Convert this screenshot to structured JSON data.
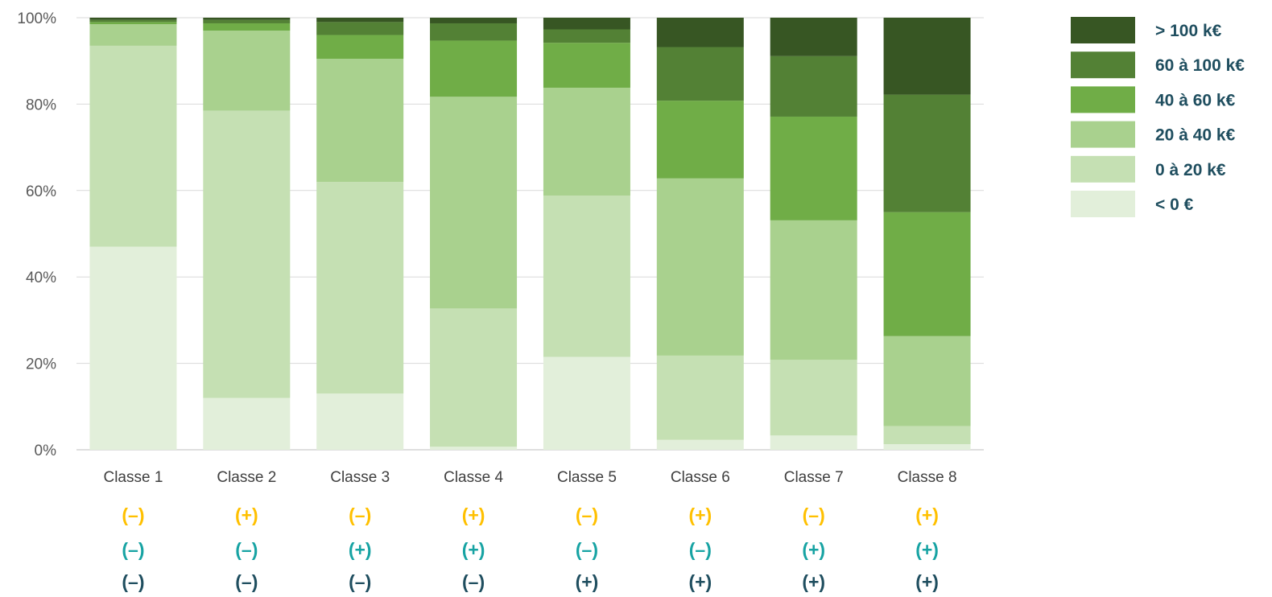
{
  "chart_data": {
    "type": "bar",
    "stacked": true,
    "percent": true,
    "categories": [
      "Classe 1",
      "Classe 2",
      "Classe 3",
      "Classe 4",
      "Classe 5",
      "Classe 6",
      "Classe 7",
      "Classe 8"
    ],
    "series": [
      {
        "name": "< 0 €",
        "color": "#e2efda",
        "values": [
          47,
          12,
          13,
          0.7,
          21.5,
          2.3,
          3.3,
          1.3
        ]
      },
      {
        "name": "0 à 20 k€",
        "color": "#c5e0b3",
        "values": [
          46.5,
          66.5,
          49,
          32,
          37.3,
          19.5,
          17.5,
          4.2
        ]
      },
      {
        "name": "20 à 40 k€",
        "color": "#a9d18e",
        "values": [
          5,
          18.5,
          28.5,
          49,
          25,
          41,
          32.3,
          20.8
        ]
      },
      {
        "name": "40 à 60 k€",
        "color": "#70ad47",
        "values": [
          0.5,
          1.7,
          5.5,
          13,
          10.4,
          18,
          24,
          28.7
        ]
      },
      {
        "name": "60 à 100 k€",
        "color": "#538135",
        "values": [
          0.5,
          0.8,
          3,
          4,
          3.1,
          12.4,
          14,
          27.2
        ]
      },
      {
        "name": "> 100 k€",
        "color": "#375623",
        "values": [
          0.5,
          0.5,
          1,
          1.3,
          2.7,
          6.8,
          8.9,
          17.8
        ]
      }
    ],
    "ylim": [
      0,
      100
    ],
    "yticks": [
      "0%",
      "20%",
      "40%",
      "60%",
      "80%",
      "100%"
    ],
    "grid": true,
    "legend_position": "right",
    "sign_rows": [
      {
        "color": "#ffc000",
        "labels": [
          "(–)",
          "(+)",
          "(–)",
          "(+)",
          "(–)",
          "(+)",
          "(–)",
          "(+)"
        ]
      },
      {
        "color": "#17a3a3",
        "labels": [
          "(–)",
          "(–)",
          "(+)",
          "(+)",
          "(–)",
          "(–)",
          "(+)",
          "(+)"
        ]
      },
      {
        "color": "#1f4e5f",
        "labels": [
          "(–)",
          "(–)",
          "(–)",
          "(–)",
          "(+)",
          "(+)",
          "(+)",
          "(+)"
        ]
      }
    ]
  }
}
